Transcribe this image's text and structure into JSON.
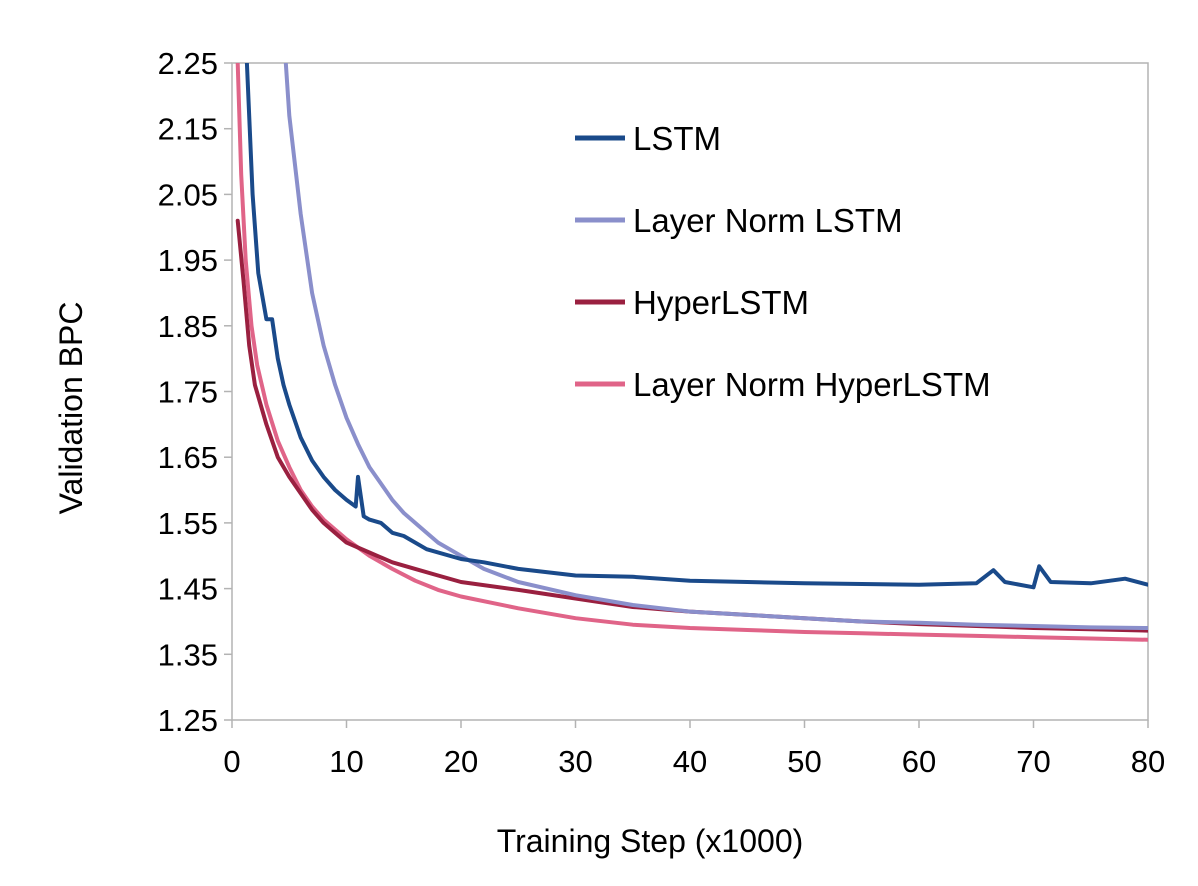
{
  "chart_data": {
    "type": "line",
    "xlabel": "Training Step (x1000)",
    "ylabel": "Validation BPC",
    "xlim": [
      0,
      80
    ],
    "ylim": [
      1.25,
      2.25
    ],
    "x_ticks": [
      "0",
      "10",
      "20",
      "30",
      "40",
      "50",
      "60",
      "70",
      "80"
    ],
    "y_ticks": [
      "1.25",
      "1.35",
      "1.45",
      "1.55",
      "1.65",
      "1.75",
      "1.85",
      "1.95",
      "2.05",
      "2.15",
      "2.25"
    ],
    "grid": false,
    "legend_position": "top-right",
    "series": [
      {
        "name": "LSTM",
        "color": "#1a4a8a",
        "x": [
          1.3,
          1.8,
          2.3,
          3.0,
          3.5,
          4.0,
          4.5,
          5,
          6,
          7,
          8,
          9,
          10,
          10.8,
          11.0,
          11.5,
          12,
          13,
          14,
          15,
          17,
          20,
          22,
          25,
          30,
          35,
          40,
          45,
          50,
          55,
          60,
          65,
          66.5,
          67.5,
          70,
          70.5,
          71.5,
          75,
          78,
          80
        ],
        "y": [
          2.25,
          2.05,
          1.93,
          1.86,
          1.86,
          1.8,
          1.76,
          1.73,
          1.68,
          1.645,
          1.62,
          1.6,
          1.585,
          1.575,
          1.62,
          1.56,
          1.555,
          1.55,
          1.535,
          1.53,
          1.51,
          1.495,
          1.49,
          1.48,
          1.47,
          1.468,
          1.462,
          1.46,
          1.458,
          1.457,
          1.456,
          1.458,
          1.478,
          1.46,
          1.452,
          1.484,
          1.46,
          1.458,
          1.465,
          1.456
        ]
      },
      {
        "name": "Layer Norm LSTM",
        "color": "#8a8fcb",
        "x": [
          4.7,
          5,
          6,
          7,
          8,
          9,
          10,
          11,
          12,
          13,
          14,
          15,
          16,
          17,
          18,
          20,
          22,
          25,
          30,
          35,
          40,
          45,
          50,
          55,
          60,
          65,
          70,
          75,
          80
        ],
        "y": [
          2.25,
          2.17,
          2.02,
          1.9,
          1.82,
          1.76,
          1.71,
          1.67,
          1.635,
          1.61,
          1.585,
          1.565,
          1.55,
          1.535,
          1.52,
          1.5,
          1.48,
          1.46,
          1.44,
          1.425,
          1.415,
          1.41,
          1.405,
          1.4,
          1.398,
          1.395,
          1.393,
          1.391,
          1.39
        ]
      },
      {
        "name": "HyperLSTM",
        "color": "#9a2040",
        "x": [
          0.5,
          1,
          1.5,
          2,
          3,
          4,
          5,
          6,
          7,
          8,
          9,
          10,
          12,
          14,
          16,
          18,
          20,
          25,
          30,
          35,
          40,
          45,
          50,
          55,
          60,
          65,
          70,
          75,
          80
        ],
        "y": [
          2.01,
          1.92,
          1.82,
          1.76,
          1.7,
          1.65,
          1.62,
          1.595,
          1.57,
          1.55,
          1.535,
          1.52,
          1.505,
          1.49,
          1.48,
          1.47,
          1.46,
          1.448,
          1.435,
          1.422,
          1.415,
          1.41,
          1.405,
          1.4,
          1.396,
          1.393,
          1.39,
          1.388,
          1.386
        ]
      },
      {
        "name": "Layer Norm HyperLSTM",
        "color": "#e06488",
        "x": [
          0.5,
          0.8,
          1.2,
          1.7,
          2.2,
          3,
          4,
          5,
          6,
          7,
          8,
          9,
          10,
          12,
          14,
          16,
          18,
          20,
          25,
          30,
          35,
          40,
          45,
          50,
          55,
          60,
          65,
          70,
          75,
          80
        ],
        "y": [
          2.25,
          2.08,
          1.95,
          1.85,
          1.79,
          1.73,
          1.675,
          1.635,
          1.6,
          1.575,
          1.555,
          1.54,
          1.525,
          1.5,
          1.48,
          1.462,
          1.448,
          1.438,
          1.42,
          1.405,
          1.395,
          1.39,
          1.387,
          1.384,
          1.382,
          1.38,
          1.378,
          1.376,
          1.374,
          1.372
        ]
      }
    ]
  }
}
